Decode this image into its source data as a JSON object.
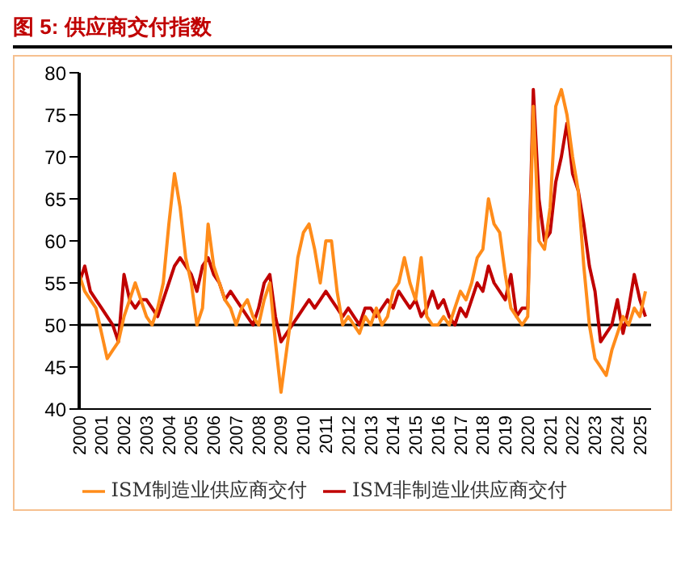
{
  "chart_data": {
    "type": "line",
    "title": "图 5: 供应商交付指数",
    "x": [
      2000,
      2000.25,
      2000.5,
      2000.75,
      2001,
      2001.25,
      2001.5,
      2001.75,
      2002,
      2002.25,
      2002.5,
      2002.75,
      2003,
      2003.25,
      2003.5,
      2003.75,
      2004,
      2004.25,
      2004.5,
      2004.75,
      2005,
      2005.25,
      2005.5,
      2005.75,
      2006,
      2006.25,
      2006.5,
      2006.75,
      2007,
      2007.25,
      2007.5,
      2007.75,
      2008,
      2008.25,
      2008.5,
      2008.75,
      2009,
      2009.25,
      2009.5,
      2009.75,
      2010,
      2010.25,
      2010.5,
      2010.75,
      2011,
      2011.25,
      2011.5,
      2011.75,
      2012,
      2012.25,
      2012.5,
      2012.75,
      2013,
      2013.25,
      2013.5,
      2013.75,
      2014,
      2014.25,
      2014.5,
      2014.75,
      2015,
      2015.25,
      2015.5,
      2015.75,
      2016,
      2016.25,
      2016.5,
      2016.75,
      2017,
      2017.25,
      2017.5,
      2017.75,
      2018,
      2018.25,
      2018.5,
      2018.75,
      2019,
      2019.25,
      2019.5,
      2019.75,
      2020,
      2020.25,
      2020.5,
      2020.75,
      2021,
      2021.25,
      2021.5,
      2021.75,
      2022,
      2022.25,
      2022.5,
      2022.75,
      2023,
      2023.25,
      2023.5,
      2023.75,
      2024,
      2024.25,
      2024.5,
      2024.75,
      2025,
      2025.25
    ],
    "series": [
      {
        "name": "ISM非制造业供应商交付",
        "color": "#c00000",
        "values": [
          55,
          57,
          54,
          53,
          52,
          51,
          50,
          48,
          56,
          53,
          52,
          53,
          53,
          52,
          51,
          53,
          55,
          57,
          58,
          57,
          56,
          54,
          57,
          58,
          56,
          55,
          53,
          54,
          53,
          52,
          51,
          50,
          52,
          55,
          56,
          51,
          48,
          49,
          50,
          51,
          52,
          53,
          52,
          53,
          54,
          53,
          52,
          51,
          52,
          51,
          50,
          52,
          52,
          51,
          52,
          53,
          52,
          54,
          53,
          52,
          53,
          51,
          52,
          54,
          52,
          53,
          51,
          50,
          52,
          51,
          53,
          55,
          54,
          57,
          55,
          54,
          53,
          56,
          51,
          52,
          52,
          78,
          65,
          60,
          61,
          67,
          70,
          74,
          68,
          66,
          62,
          57,
          54,
          48,
          49,
          50,
          53,
          49,
          52,
          56,
          53,
          51
        ]
      },
      {
        "name": "ISM制造业供应商交付",
        "color": "#ff8c1a",
        "values": [
          56,
          54,
          53,
          52,
          49,
          46,
          47,
          48,
          51,
          53,
          55,
          53,
          51,
          50,
          52,
          55,
          62,
          68,
          64,
          58,
          55,
          50,
          52,
          62,
          57,
          55,
          53,
          52,
          50,
          52,
          53,
          51,
          50,
          53,
          55,
          48,
          42,
          47,
          52,
          58,
          61,
          62,
          59,
          55,
          60,
          60,
          54,
          50,
          51,
          50,
          49,
          51,
          50,
          52,
          50,
          51,
          54,
          55,
          58,
          55,
          53,
          58,
          51,
          50,
          50,
          51,
          50,
          52,
          54,
          53,
          55,
          58,
          59,
          65,
          62,
          61,
          56,
          52,
          51,
          50,
          51,
          76,
          60,
          59,
          64,
          76,
          78,
          75,
          70,
          66,
          57,
          50,
          46,
          45,
          44,
          47,
          49,
          51,
          50,
          52,
          51,
          54
        ]
      }
    ],
    "xlim": [
      2000,
      2025.5
    ],
    "xticks": [
      2000,
      2001,
      2002,
      2003,
      2004,
      2005,
      2006,
      2007,
      2008,
      2009,
      2010,
      2011,
      2012,
      2013,
      2014,
      2015,
      2016,
      2017,
      2018,
      2019,
      2020,
      2021,
      2022,
      2023,
      2024,
      2025
    ],
    "ylim": [
      40,
      80
    ],
    "yticks": [
      40,
      45,
      50,
      55,
      60,
      65,
      70,
      75,
      80
    ],
    "ref_lines": [
      {
        "axis": "y",
        "value": 50,
        "color": "#000000"
      }
    ],
    "grid": false,
    "legend": "bottom",
    "line_style": "solid",
    "marker": "none"
  }
}
